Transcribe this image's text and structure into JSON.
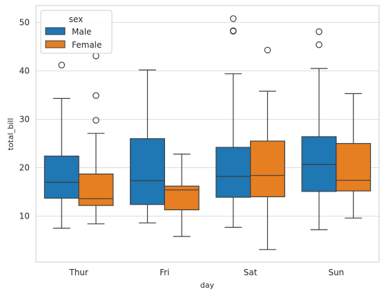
{
  "chart_data": {
    "type": "box",
    "xlabel": "day",
    "ylabel": "total_bill",
    "categories": [
      "Thur",
      "Fri",
      "Sat",
      "Sun"
    ],
    "ylim": [
      0.5,
      53.5
    ],
    "yticks": [
      10,
      20,
      30,
      40,
      50
    ],
    "grid": true,
    "legend": {
      "title": "sex",
      "placement": "top-left"
    },
    "series": [
      {
        "name": "Male",
        "color": "#1f77b4",
        "boxes": [
          {
            "whislo": 7.5,
            "q1": 13.7,
            "med": 17.0,
            "q3": 22.4,
            "whishi": 34.3,
            "fliers": [
              41.2
            ]
          },
          {
            "whislo": 8.6,
            "q1": 12.4,
            "med": 17.3,
            "q3": 26.0,
            "whishi": 40.2,
            "fliers": []
          },
          {
            "whislo": 7.7,
            "q1": 13.9,
            "med": 18.2,
            "q3": 24.2,
            "whishi": 39.4,
            "fliers": [
              48.2,
              48.3,
              50.8
            ]
          },
          {
            "whislo": 7.2,
            "q1": 15.1,
            "med": 20.7,
            "q3": 26.4,
            "whishi": 40.5,
            "fliers": [
              45.4,
              48.1
            ]
          }
        ]
      },
      {
        "name": "Female",
        "color": "#e67e22",
        "boxes": [
          {
            "whislo": 8.4,
            "q1": 12.2,
            "med": 13.6,
            "q3": 18.7,
            "whishi": 27.1,
            "fliers": [
              29.8,
              34.9,
              43.1
            ]
          },
          {
            "whislo": 5.8,
            "q1": 11.3,
            "med": 15.4,
            "q3": 16.2,
            "whishi": 22.8,
            "fliers": []
          },
          {
            "whislo": 3.1,
            "q1": 14.0,
            "med": 18.4,
            "q3": 25.5,
            "whishi": 35.8,
            "fliers": [
              44.3
            ]
          },
          {
            "whislo": 9.6,
            "q1": 15.2,
            "med": 17.4,
            "q3": 25.0,
            "whishi": 35.3,
            "fliers": []
          }
        ]
      }
    ]
  }
}
